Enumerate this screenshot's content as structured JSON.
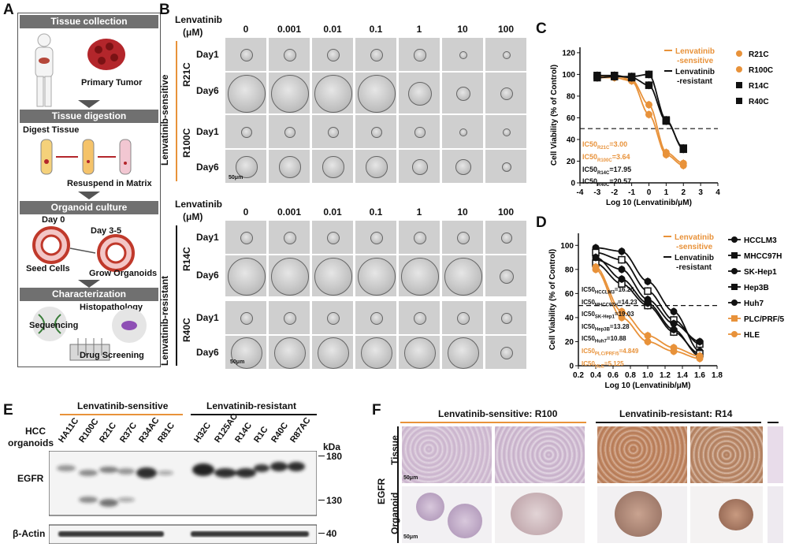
{
  "panels": {
    "a": "A",
    "b": "B",
    "c": "C",
    "d": "D",
    "e": "E",
    "f": "F"
  },
  "panel_a": {
    "tissue_collection": "Tissue collection",
    "primary_tumor": "Primary Tumor",
    "tissue_digestion": "Tissue digestion",
    "digest_tissue": "Digest Tissue",
    "resuspend": "Resuspend in Matrix",
    "organoid_culture": "Organoid culture",
    "day0": "Day 0",
    "day35": "Day 3-5",
    "seed_cells": "Seed Cells",
    "grow_organoids": "Grow Organoids",
    "characterization": "Characterization",
    "histopathology": "Histopathology",
    "sequencing": "Sequencing",
    "drug_screening": "Drug Screening"
  },
  "panel_b": {
    "lenvatinib": "Lenvatinib",
    "unit": "(μM)",
    "concentrations": [
      "0",
      "0.001",
      "0.01",
      "0.1",
      "1",
      "10",
      "100"
    ],
    "group_sensitive": "Lenvatinib-sensitive",
    "group_resistant": "Lenvatinib-resistant",
    "lines_top": [
      "R21C",
      "R100C"
    ],
    "lines_bottom": [
      "R14C",
      "R40C"
    ],
    "day1": "Day1",
    "day6": "Day6",
    "scale": "50μm"
  },
  "panel_c": {
    "chart_data": {
      "type": "line",
      "xlabel": "Log 10 (Lenvatinib/μM)",
      "ylabel": "Cell Viability (% of Control)",
      "xlim": [
        -4,
        4
      ],
      "ylim": [
        0,
        125
      ],
      "xticks": [
        "-4",
        "-3",
        "-2",
        "-1",
        "0",
        "1",
        "2",
        "3",
        "4"
      ],
      "yticks": [
        "0",
        "20",
        "40",
        "60",
        "80",
        "100",
        "120"
      ],
      "x": [
        -3,
        -2,
        -1,
        0,
        1,
        2
      ],
      "series": [
        {
          "name": "R21C",
          "color": "#e8923a",
          "marker": "circle",
          "values": [
            98,
            99,
            95,
            72,
            28,
            18
          ],
          "ic50": "IC50R21C=3.00"
        },
        {
          "name": "R100C",
          "color": "#e8923a",
          "marker": "circle",
          "values": [
            97,
            97,
            94,
            63,
            26,
            16
          ],
          "ic50": "IC50R100C=3.64"
        },
        {
          "name": "R14C",
          "color": "#111111",
          "marker": "square",
          "values": [
            99,
            99,
            97,
            90,
            57,
            32
          ],
          "ic50": "IC50R14C=17.95"
        },
        {
          "name": "R40C",
          "color": "#111111",
          "marker": "square",
          "values": [
            97,
            98,
            98,
            100,
            58,
            31
          ],
          "ic50": "IC50R40C=20.57"
        }
      ],
      "threshold": 50,
      "legend_lines": [
        {
          "label": "Lenvatinib -sensitive",
          "color": "#e8923a"
        },
        {
          "label": "Lenvatinib -resistant",
          "color": "#111111"
        }
      ]
    },
    "legend_line1a": "Lenvatinib",
    "legend_line1b": "-sensitive",
    "legend_line2a": "Lenvatinib",
    "legend_line2b": "-resistant",
    "ic50": [
      {
        "base": "IC50",
        "sub": "R21C",
        "val": "=3.00",
        "color": "#e8923a"
      },
      {
        "base": "IC50",
        "sub": "R100C",
        "val": "=3.64",
        "color": "#e8923a"
      },
      {
        "base": "IC50",
        "sub": "R14C",
        "val": "=17.95",
        "color": "#111"
      },
      {
        "base": "IC50",
        "sub": "R40C",
        "val": "=20.57",
        "color": "#111"
      }
    ]
  },
  "panel_d": {
    "chart_data": {
      "type": "line",
      "xlabel": "Log 10 (Lenvatinib/μM)",
      "ylabel": "Cell Viability (% of Control)",
      "xlim": [
        0.2,
        1.8
      ],
      "ylim": [
        0,
        110
      ],
      "xticks": [
        "0.2",
        "0.4",
        "0.6",
        "0.8",
        "1.0",
        "1.2",
        "1.4",
        "1.6",
        "1.8"
      ],
      "yticks": [
        "0",
        "20",
        "40",
        "60",
        "80",
        "100"
      ],
      "x": [
        0.4,
        0.7,
        1.0,
        1.3,
        1.6
      ],
      "series": [
        {
          "name": "HCCLM3",
          "color": "#111111",
          "values": [
            98,
            95,
            70,
            45,
            12
          ]
        },
        {
          "name": "MHCC97H",
          "color": "#111111",
          "values": [
            94,
            88,
            62,
            38,
            18
          ]
        },
        {
          "name": "SK-Hep1",
          "color": "#111111",
          "values": [
            88,
            80,
            55,
            35,
            20
          ]
        },
        {
          "name": "Hep3B",
          "color": "#111111",
          "values": [
            85,
            68,
            50,
            28,
            10
          ]
        },
        {
          "name": "Huh7",
          "color": "#111111",
          "values": [
            90,
            72,
            52,
            30,
            8
          ]
        },
        {
          "name": "PLC/PRF/5",
          "color": "#e8923a",
          "values": [
            80,
            40,
            20,
            12,
            6
          ]
        },
        {
          "name": "HLE",
          "color": "#e8923a",
          "values": [
            82,
            45,
            25,
            15,
            8
          ]
        }
      ],
      "threshold": 50
    },
    "legend_items": [
      "HCCLM3",
      "MHCC97H",
      "SK-Hep1",
      "Hep3B",
      "Huh7",
      "PLC/PRF/5",
      "HLE"
    ],
    "legend_line1a": "Lenvatinib",
    "legend_line1b": "-sensitive",
    "legend_line2a": "Lenvatinib",
    "legend_line2b": "-resistant",
    "ic50": [
      {
        "base": "IC50",
        "sub": "HCCLM3",
        "val": "=16.26",
        "color": "#111"
      },
      {
        "base": "IC50",
        "sub": "MHCC97H",
        "val": "=14.23",
        "color": "#111"
      },
      {
        "base": "IC50",
        "sub": "SK-Hep1",
        "val": "=19.03",
        "color": "#111"
      },
      {
        "base": "IC50",
        "sub": "Hep3B",
        "val": "=13.28",
        "color": "#111"
      },
      {
        "base": "IC50",
        "sub": "Huh7",
        "val": "=10.88",
        "color": "#111"
      },
      {
        "base": "IC50",
        "sub": "PLC/PRF/5",
        "val": "=4.849",
        "color": "#e8923a"
      },
      {
        "base": "IC50",
        "sub": "HLE",
        "val": "=5.125",
        "color": "#e8923a"
      }
    ]
  },
  "panel_e": {
    "sensitive": "Lenvatinib-sensitive",
    "resistant": "Lenvatinib-resistant",
    "hcc": "HCC",
    "organoids": "organoids",
    "lanes": [
      "HA11C",
      "R100C",
      "R21C",
      "R37C",
      "R34AC",
      "R81C",
      "H32C",
      "R125AC",
      "R14C",
      "R1C",
      "R40C",
      "R87AC"
    ],
    "kda": "kDa",
    "egfr": "EGFR",
    "actin": "β-Actin",
    "markers": [
      "180",
      "130",
      "40"
    ]
  },
  "panel_f": {
    "sensitive": "Lenvatinib-sensitive: R100",
    "resistant": "Lenvatinib-resistant: R14",
    "egfr": "EGFR",
    "tissue": "Tissue",
    "organoid": "Organoid",
    "scale": "50μm"
  }
}
